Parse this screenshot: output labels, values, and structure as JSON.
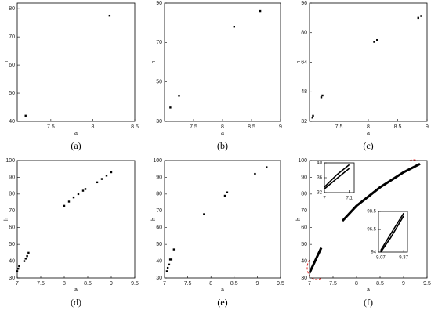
{
  "chart_data": [
    {
      "type": "scatter",
      "label": "(a)",
      "x_label": "a",
      "y_label": "h",
      "color": "#000000",
      "x": [
        7.2,
        8.2
      ],
      "values": [
        42,
        77.5
      ],
      "xlim": [
        7.1,
        8.5
      ],
      "xticks": [
        7.5,
        8,
        8.5
      ],
      "ylim": [
        40,
        82
      ],
      "yticks": [
        40,
        50,
        60,
        70,
        80
      ]
    },
    {
      "type": "scatter",
      "label": "(b)",
      "x_label": "a",
      "y_label": "h",
      "color": "#000000",
      "x": [
        7.1,
        7.25,
        8.2,
        8.65
      ],
      "values": [
        37,
        43,
        78,
        86
      ],
      "xlim": [
        7,
        9
      ],
      "xticks": [
        7.5,
        8,
        8.5,
        9
      ],
      "ylim": [
        30,
        90
      ],
      "yticks": [
        30,
        50,
        70,
        90
      ]
    },
    {
      "type": "scatter",
      "label": "(c)",
      "x_label": "a",
      "y_label": "h",
      "color": "#000000",
      "x": [
        7.05,
        7.06,
        7.2,
        7.22,
        8.1,
        8.15,
        8.85,
        8.9
      ],
      "values": [
        34,
        35,
        45,
        46,
        75,
        76,
        88,
        89
      ],
      "xlim": [
        7,
        9
      ],
      "xticks": [
        7.5,
        8,
        8.5,
        9
      ],
      "ylim": [
        32,
        96
      ],
      "yticks": [
        32,
        48,
        64,
        80,
        96
      ]
    },
    {
      "type": "scatter",
      "label": "(d)",
      "x_label": "a",
      "y_label": "h",
      "color": "#000000",
      "x": [
        7.0,
        7.02,
        7.04,
        7.15,
        7.18,
        7.21,
        7.24,
        8.0,
        8.1,
        8.2,
        8.3,
        8.4,
        8.45,
        8.7,
        8.8,
        8.9,
        9.0
      ],
      "values": [
        34,
        35.5,
        37,
        40,
        41.5,
        43,
        45,
        73,
        75.5,
        78,
        80,
        82,
        83,
        87,
        89,
        91,
        93
      ],
      "xlim": [
        7,
        9.5
      ],
      "xticks": [
        7,
        7.5,
        8,
        8.5,
        9,
        9.5
      ],
      "ylim": [
        30,
        100
      ],
      "yticks": [
        30,
        40,
        50,
        60,
        70,
        80,
        90,
        100
      ]
    },
    {
      "type": "scatter",
      "label": "(e)",
      "x_label": "a",
      "y_label": "h",
      "color": "#000000",
      "x": [
        7.05,
        7.07,
        7.1,
        7.12,
        7.15,
        7.2,
        7.85,
        8.3,
        8.35,
        8.95,
        9.2
      ],
      "values": [
        34,
        36,
        38,
        41,
        41,
        47,
        68,
        79,
        81,
        92,
        96
      ],
      "xlim": [
        7,
        9.5
      ],
      "xticks": [
        7,
        7.5,
        8,
        8.5,
        9,
        9.5
      ],
      "ylim": [
        30,
        100
      ],
      "yticks": [
        30,
        40,
        50,
        60,
        70,
        80,
        90,
        100
      ]
    },
    {
      "type": "line",
      "label": "(f)",
      "x_label": "a",
      "y_label": "h",
      "color": "#000000",
      "series": [
        {
          "x": [
            7.0,
            7.05,
            7.1,
            7.15,
            7.2,
            7.25
          ],
          "values": [
            33,
            36,
            39,
            42,
            45,
            48
          ]
        },
        {
          "x": [
            7.7,
            8.0,
            8.5,
            9.0,
            9.35
          ],
          "values": [
            64,
            73,
            84,
            93,
            98
          ]
        }
      ],
      "xlim": [
        7,
        9.5
      ],
      "xticks": [
        7,
        7.5,
        8,
        8.5,
        9,
        9.5
      ],
      "ylim": [
        30,
        100
      ],
      "yticks": [
        30,
        40,
        50,
        60,
        70,
        80,
        90,
        100
      ]
    },
    {
      "type": "line",
      "color": "#000000",
      "series": [
        {
          "x": [
            7.0,
            7.05,
            7.1
          ],
          "values": [
            33.5,
            36.8,
            39.5
          ]
        },
        {
          "x": [
            7.0,
            7.05,
            7.1
          ],
          "values": [
            33,
            35.8,
            38.5
          ]
        }
      ],
      "xlim": [
        7,
        7.12
      ],
      "xticks": [
        7,
        7.1
      ],
      "ylim": [
        32,
        40
      ],
      "yticks": [
        32,
        36,
        40
      ]
    },
    {
      "type": "line",
      "color": "#000000",
      "series": [
        {
          "x": [
            9.07,
            9.2,
            9.37
          ],
          "values": [
            94.2,
            96.0,
            98.3
          ]
        },
        {
          "x": [
            9.07,
            9.2,
            9.37
          ],
          "values": [
            94.0,
            95.6,
            98.0
          ]
        }
      ],
      "xlim": [
        9.04,
        9.42
      ],
      "xticks": [
        9.07,
        9.37
      ],
      "ylim": [
        94,
        98.5
      ],
      "yticks": [
        94,
        96.5,
        98.5
      ]
    }
  ]
}
